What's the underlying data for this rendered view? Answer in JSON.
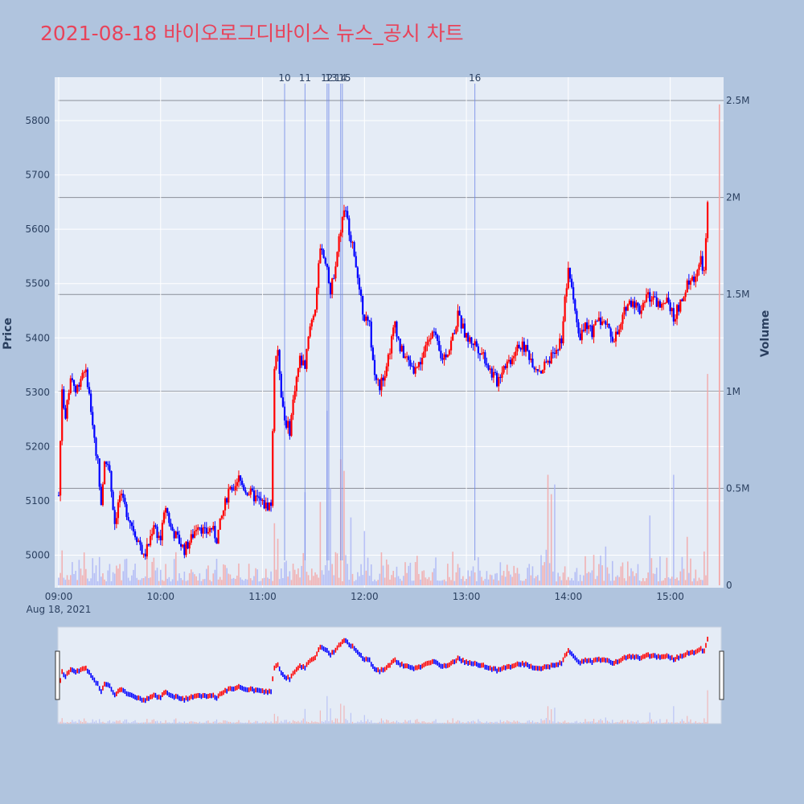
{
  "title": "2021-08-18 바이오로그디바이스 뉴스_공시 차트",
  "colors": {
    "up": "#ff0000",
    "down": "#0000ff",
    "vol_up": "#f4a3a3",
    "vol_down": "#a9b3f5",
    "plot_bg": "#e5ecf6",
    "page_bg": "#b0c4de",
    "title": "#e8435a"
  },
  "chart_data": {
    "type": "candlestick",
    "title": "2021-08-18 바이오로그디바이스 뉴스_공시 차트",
    "xlabel": "",
    "ylabel": "Price",
    "y2label": "Volume",
    "date_label": "Aug 18, 2021",
    "x_ticks": [
      "09:00",
      "10:00",
      "11:00",
      "12:00",
      "13:00",
      "14:00",
      "15:00"
    ],
    "x_range": [
      "09:00",
      "15:30"
    ],
    "price_ticks": [
      5000,
      5100,
      5200,
      5300,
      5400,
      5500,
      5600,
      5700,
      5800
    ],
    "price_range": [
      4940,
      5880
    ],
    "volume_ticks": [
      0,
      500000,
      1000000,
      1500000,
      2000000,
      2500000
    ],
    "volume_tick_labels": [
      "0",
      "0.5M",
      "1M",
      "1.5M",
      "2M",
      "2.5M"
    ],
    "volume_range": [
      0,
      2500000
    ],
    "grid": true,
    "news_markers": [
      {
        "label": "10",
        "time": "11:13"
      },
      {
        "label": "11",
        "time": "11:25"
      },
      {
        "label": "12",
        "time": "11:38"
      },
      {
        "label": "13",
        "time": "11:39"
      },
      {
        "label": "14",
        "time": "11:46"
      },
      {
        "label": "15",
        "time": "11:47"
      },
      {
        "label": "16",
        "time": "13:05"
      }
    ],
    "price_path": [
      [
        "09:00",
        5110
      ],
      [
        "09:02",
        5310
      ],
      [
        "09:04",
        5250
      ],
      [
        "09:06",
        5300
      ],
      [
        "09:08",
        5330
      ],
      [
        "09:10",
        5300
      ],
      [
        "09:12",
        5320
      ],
      [
        "09:15",
        5345
      ],
      [
        "09:17",
        5320
      ],
      [
        "09:20",
        5240
      ],
      [
        "09:23",
        5170
      ],
      [
        "09:25",
        5100
      ],
      [
        "09:27",
        5180
      ],
      [
        "09:30",
        5150
      ],
      [
        "09:33",
        5060
      ],
      [
        "09:36",
        5110
      ],
      [
        "09:40",
        5080
      ],
      [
        "09:45",
        5040
      ],
      [
        "09:48",
        5020
      ],
      [
        "09:50",
        4995
      ],
      [
        "09:53",
        5020
      ],
      [
        "09:56",
        5060
      ],
      [
        "09:58",
        5040
      ],
      [
        "10:00",
        5030
      ],
      [
        "10:03",
        5090
      ],
      [
        "10:06",
        5050
      ],
      [
        "10:10",
        5030
      ],
      [
        "10:14",
        5010
      ],
      [
        "10:18",
        5030
      ],
      [
        "10:22",
        5060
      ],
      [
        "10:26",
        5040
      ],
      [
        "10:30",
        5050
      ],
      [
        "10:33",
        5030
      ],
      [
        "10:36",
        5070
      ],
      [
        "10:40",
        5120
      ],
      [
        "10:43",
        5110
      ],
      [
        "10:46",
        5140
      ],
      [
        "10:50",
        5120
      ],
      [
        "10:54",
        5110
      ],
      [
        "10:58",
        5100
      ],
      [
        "11:02",
        5090
      ],
      [
        "11:05",
        5095
      ],
      [
        "11:07",
        5350
      ],
      [
        "11:09",
        5380
      ],
      [
        "11:11",
        5300
      ],
      [
        "11:13",
        5250
      ],
      [
        "11:16",
        5230
      ],
      [
        "11:19",
        5310
      ],
      [
        "11:22",
        5360
      ],
      [
        "11:25",
        5350
      ],
      [
        "11:28",
        5420
      ],
      [
        "11:31",
        5460
      ],
      [
        "11:34",
        5560
      ],
      [
        "11:37",
        5540
      ],
      [
        "11:40",
        5480
      ],
      [
        "11:43",
        5540
      ],
      [
        "11:46",
        5600
      ],
      [
        "11:48",
        5640
      ],
      [
        "11:51",
        5600
      ],
      [
        "11:54",
        5560
      ],
      [
        "11:57",
        5480
      ],
      [
        "12:00",
        5440
      ],
      [
        "12:03",
        5420
      ],
      [
        "12:06",
        5330
      ],
      [
        "12:09",
        5310
      ],
      [
        "12:12",
        5340
      ],
      [
        "12:15",
        5380
      ],
      [
        "12:18",
        5430
      ],
      [
        "12:21",
        5380
      ],
      [
        "12:25",
        5360
      ],
      [
        "12:30",
        5340
      ],
      [
        "12:35",
        5370
      ],
      [
        "12:40",
        5420
      ],
      [
        "12:45",
        5360
      ],
      [
        "12:50",
        5380
      ],
      [
        "12:55",
        5440
      ],
      [
        "13:00",
        5400
      ],
      [
        "13:05",
        5390
      ],
      [
        "13:10",
        5370
      ],
      [
        "13:14",
        5340
      ],
      [
        "13:18",
        5320
      ],
      [
        "13:22",
        5350
      ],
      [
        "13:26",
        5360
      ],
      [
        "13:30",
        5390
      ],
      [
        "13:35",
        5380
      ],
      [
        "13:40",
        5350
      ],
      [
        "13:44",
        5340
      ],
      [
        "13:48",
        5360
      ],
      [
        "13:52",
        5370
      ],
      [
        "13:56",
        5400
      ],
      [
        "13:58",
        5470
      ],
      [
        "14:00",
        5520
      ],
      [
        "14:03",
        5480
      ],
      [
        "14:06",
        5400
      ],
      [
        "14:10",
        5420
      ],
      [
        "14:14",
        5410
      ],
      [
        "14:18",
        5440
      ],
      [
        "14:22",
        5420
      ],
      [
        "14:26",
        5400
      ],
      [
        "14:30",
        5410
      ],
      [
        "14:34",
        5460
      ],
      [
        "14:38",
        5470
      ],
      [
        "14:42",
        5450
      ],
      [
        "14:46",
        5480
      ],
      [
        "14:50",
        5470
      ],
      [
        "14:54",
        5460
      ],
      [
        "14:58",
        5480
      ],
      [
        "15:02",
        5440
      ],
      [
        "15:06",
        5460
      ],
      [
        "15:10",
        5500
      ],
      [
        "15:14",
        5510
      ],
      [
        "15:18",
        5540
      ],
      [
        "15:20",
        5520
      ],
      [
        "15:22",
        5640
      ]
    ],
    "volume_spikes": [
      [
        "09:02",
        180000
      ],
      [
        "09:08",
        120000
      ],
      [
        "09:20",
        140000
      ],
      [
        "09:30",
        110000
      ],
      [
        "10:00",
        80000
      ],
      [
        "10:40",
        60000
      ],
      [
        "11:07",
        320000
      ],
      [
        "11:09",
        240000
      ],
      [
        "11:25",
        480000
      ],
      [
        "11:34",
        430000
      ],
      [
        "11:38",
        900000
      ],
      [
        "11:40",
        500000
      ],
      [
        "11:46",
        650000
      ],
      [
        "11:48",
        590000
      ],
      [
        "11:52",
        350000
      ],
      [
        "12:00",
        280000
      ],
      [
        "12:10",
        170000
      ],
      [
        "12:30",
        120000
      ],
      [
        "12:55",
        110000
      ],
      [
        "13:30",
        90000
      ],
      [
        "13:48",
        570000
      ],
      [
        "13:50",
        470000
      ],
      [
        "13:52",
        520000
      ],
      [
        "14:10",
        150000
      ],
      [
        "14:22",
        200000
      ],
      [
        "14:48",
        360000
      ],
      [
        "15:02",
        570000
      ],
      [
        "15:10",
        250000
      ],
      [
        "15:22",
        1090000
      ]
    ]
  }
}
